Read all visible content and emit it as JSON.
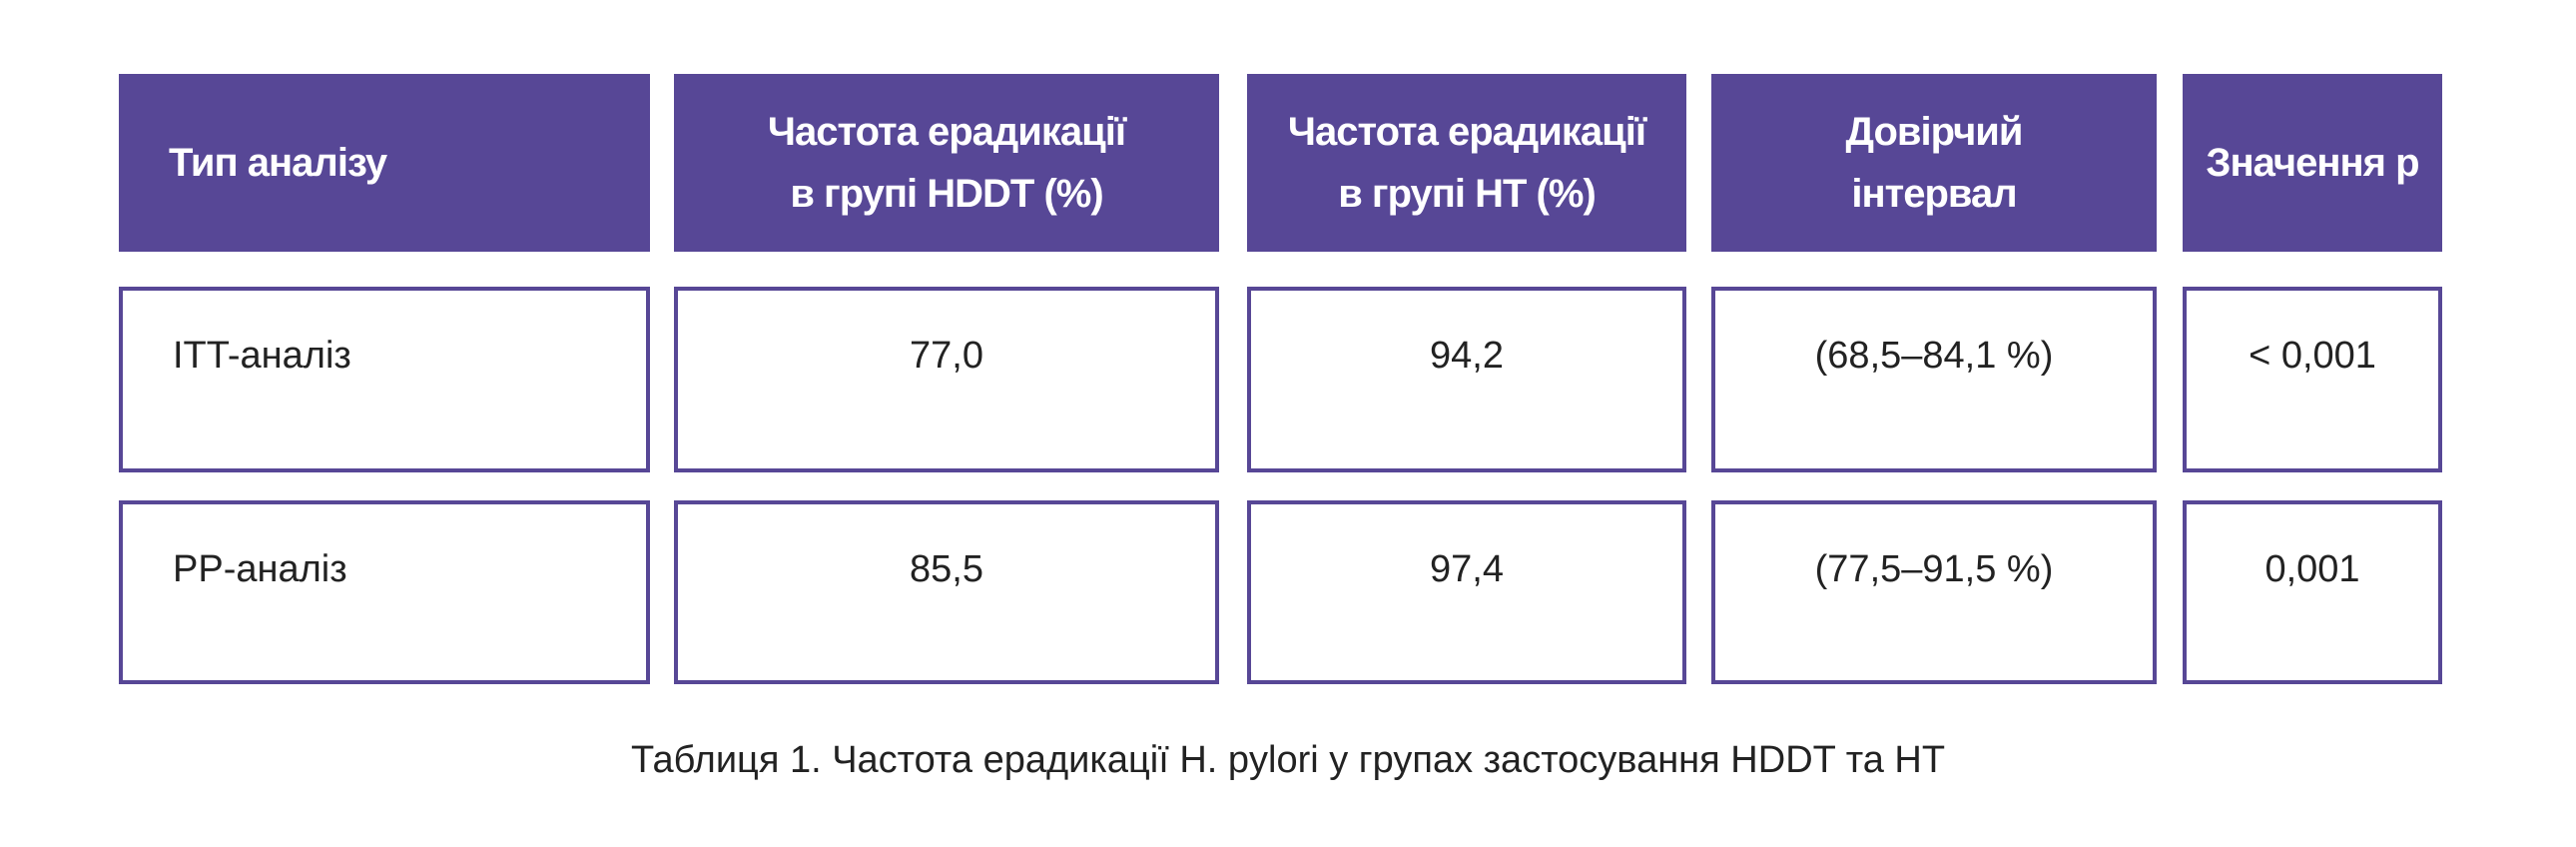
{
  "table": {
    "headers": [
      "Тип аналізу",
      "Частота ерадикації\nв групі  HDDT (%)",
      "Частота ерадикації\nв групі HT (%)",
      "Довірчий\nінтервал",
      "Значення p"
    ],
    "rows": [
      [
        "ITT-аналіз",
        "77,0",
        "94,2",
        "(68,5–84,1 %)",
        "< 0,001"
      ],
      [
        "PP-аналіз",
        "85,5",
        "97,4",
        "(77,5–91,5 %)",
        "0,001"
      ]
    ],
    "caption": "Таблиця 1. Частота ерадикації H. pylori у групах застосування HDDT та HT"
  },
  "colors": {
    "accent": "#574796",
    "header_text": "#ffffff",
    "body_text": "#222222"
  }
}
